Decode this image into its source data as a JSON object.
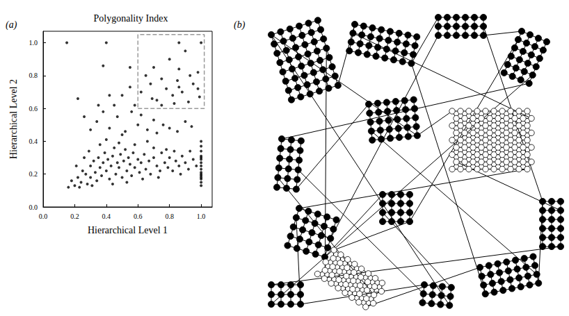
{
  "panel_labels": [
    "(a)",
    "(b)"
  ],
  "chart_data": {
    "type": "scatter",
    "title": "Polygonality Index",
    "x_label": "Hierarchical Level 1",
    "y_label": "Hierarchical Level 2",
    "color": "#000000",
    "marker": "circle",
    "grid": false,
    "xlim": [
      0,
      1.07
    ],
    "ylim": [
      0,
      1.07
    ],
    "xticks": [
      {
        "value": 0,
        "label": "0.0"
      },
      {
        "value": 0.2,
        "label": "0.2"
      },
      {
        "value": 0.4,
        "label": "0.4"
      },
      {
        "value": 0.6,
        "label": "0.6"
      },
      {
        "value": 0.8,
        "label": "0.8"
      },
      {
        "value": 1,
        "label": "1.0"
      }
    ],
    "yticks": [
      {
        "value": 0,
        "label": "0.0"
      },
      {
        "value": 0.2,
        "label": "0.2"
      },
      {
        "value": 0.4,
        "label": "0.4"
      },
      {
        "value": 0.6,
        "label": "0.6"
      },
      {
        "value": 0.8,
        "label": "0.8"
      },
      {
        "value": 1,
        "label": "1.0"
      }
    ],
    "highlight_box": {
      "x": [
        0.6,
        1.02
      ],
      "y": [
        0.6,
        1.05
      ],
      "color": "#999999",
      "line_style": "dashed"
    },
    "points": [
      [
        0.2,
        0.13
      ],
      [
        0.22,
        0.18
      ],
      [
        0.24,
        0.15
      ],
      [
        0.25,
        0.22
      ],
      [
        0.27,
        0.2
      ],
      [
        0.28,
        0.14
      ],
      [
        0.3,
        0.25
      ],
      [
        0.3,
        0.18
      ],
      [
        0.32,
        0.28
      ],
      [
        0.33,
        0.21
      ],
      [
        0.34,
        0.16
      ],
      [
        0.35,
        0.3
      ],
      [
        0.36,
        0.24
      ],
      [
        0.37,
        0.19
      ],
      [
        0.38,
        0.27
      ],
      [
        0.39,
        0.33
      ],
      [
        0.4,
        0.22
      ],
      [
        0.41,
        0.29
      ],
      [
        0.42,
        0.17
      ],
      [
        0.43,
        0.25
      ],
      [
        0.44,
        0.31
      ],
      [
        0.45,
        0.36
      ],
      [
        0.46,
        0.2
      ],
      [
        0.47,
        0.27
      ],
      [
        0.48,
        0.24
      ],
      [
        0.49,
        0.32
      ],
      [
        0.5,
        0.18
      ],
      [
        0.51,
        0.28
      ],
      [
        0.52,
        0.35
      ],
      [
        0.53,
        0.22
      ],
      [
        0.54,
        0.3
      ],
      [
        0.55,
        0.26
      ],
      [
        0.56,
        0.19
      ],
      [
        0.57,
        0.33
      ],
      [
        0.58,
        0.24
      ],
      [
        0.6,
        0.29
      ],
      [
        0.61,
        0.21
      ],
      [
        0.62,
        0.27
      ],
      [
        0.64,
        0.32
      ],
      [
        0.65,
        0.23
      ],
      [
        0.67,
        0.28
      ],
      [
        0.68,
        0.2
      ],
      [
        0.7,
        0.3
      ],
      [
        0.72,
        0.25
      ],
      [
        0.74,
        0.22
      ],
      [
        0.75,
        0.33
      ],
      [
        0.77,
        0.27
      ],
      [
        0.79,
        0.24
      ],
      [
        0.8,
        0.3
      ],
      [
        0.82,
        0.22
      ],
      [
        0.84,
        0.28
      ],
      [
        0.86,
        0.25
      ],
      [
        0.88,
        0.31
      ],
      [
        0.9,
        0.27
      ],
      [
        0.92,
        0.23
      ],
      [
        0.95,
        0.29
      ],
      [
        0.16,
        0.12
      ],
      [
        0.18,
        0.16
      ],
      [
        0.21,
        0.25
      ],
      [
        0.23,
        0.12
      ],
      [
        0.26,
        0.3
      ],
      [
        0.29,
        0.34
      ],
      [
        0.31,
        0.13
      ],
      [
        0.36,
        0.38
      ],
      [
        0.4,
        0.41
      ],
      [
        0.44,
        0.14
      ],
      [
        0.48,
        0.39
      ],
      [
        0.5,
        0.44
      ],
      [
        0.53,
        0.15
      ],
      [
        0.58,
        0.38
      ],
      [
        0.63,
        0.17
      ],
      [
        0.66,
        0.4
      ],
      [
        0.7,
        0.36
      ],
      [
        0.73,
        0.18
      ],
      [
        0.78,
        0.35
      ],
      [
        0.83,
        0.34
      ],
      [
        0.87,
        0.2
      ],
      [
        0.93,
        0.34
      ],
      [
        0.97,
        0.25
      ],
      [
        0.22,
        0.66
      ],
      [
        0.26,
        0.55
      ],
      [
        0.3,
        0.47
      ],
      [
        0.34,
        0.52
      ],
      [
        0.38,
        0.58
      ],
      [
        0.42,
        0.48
      ],
      [
        0.45,
        0.62
      ],
      [
        0.47,
        0.55
      ],
      [
        0.5,
        0.68
      ],
      [
        0.52,
        0.46
      ],
      [
        0.55,
        0.73
      ],
      [
        0.56,
        0.58
      ],
      [
        0.6,
        0.5
      ],
      [
        0.62,
        0.56
      ],
      [
        0.66,
        0.47
      ],
      [
        0.7,
        0.53
      ],
      [
        0.72,
        0.45
      ],
      [
        0.76,
        0.5
      ],
      [
        0.8,
        0.48
      ],
      [
        0.85,
        0.46
      ],
      [
        0.9,
        0.52
      ],
      [
        0.94,
        0.49
      ],
      [
        0.42,
        0.68
      ],
      [
        0.35,
        0.62
      ],
      [
        0.58,
        0.62
      ],
      [
        0.62,
        0.7
      ],
      [
        0.65,
        0.8
      ],
      [
        0.68,
        0.75
      ],
      [
        0.7,
        0.85
      ],
      [
        0.72,
        0.65
      ],
      [
        0.75,
        0.78
      ],
      [
        0.78,
        0.72
      ],
      [
        0.8,
        0.9
      ],
      [
        0.82,
        0.68
      ],
      [
        0.85,
        0.77
      ],
      [
        0.86,
        0.84
      ],
      [
        0.86,
        0.73
      ],
      [
        0.88,
        0.7
      ],
      [
        0.9,
        0.95
      ],
      [
        0.93,
        0.8
      ],
      [
        0.95,
        0.75
      ],
      [
        0.98,
        0.82
      ],
      [
        0.98,
        0.72
      ],
      [
        0.99,
        0.67
      ],
      [
        0.75,
        0.62
      ],
      [
        0.83,
        0.63
      ],
      [
        0.69,
        0.66
      ],
      [
        0.92,
        0.64
      ],
      [
        0.15,
        1.0
      ],
      [
        0.4,
        1.0
      ],
      [
        0.86,
        1.0
      ],
      [
        1.0,
        1.0
      ],
      [
        0.38,
        0.86
      ],
      [
        0.55,
        0.85
      ],
      [
        1.0,
        0.13
      ],
      [
        1.0,
        0.15
      ],
      [
        1.0,
        0.17
      ],
      [
        1.0,
        0.19
      ],
      [
        1.0,
        0.21
      ],
      [
        1.0,
        0.23
      ],
      [
        1.0,
        0.25
      ],
      [
        1.0,
        0.27
      ],
      [
        1.0,
        0.29
      ],
      [
        1.0,
        0.31
      ],
      [
        1.0,
        0.34
      ],
      [
        1.0,
        0.2
      ],
      [
        1.0,
        0.18
      ],
      [
        1.0,
        0.37
      ],
      [
        1.0,
        0.4
      ],
      [
        1.0,
        0.3
      ]
    ]
  }
}
